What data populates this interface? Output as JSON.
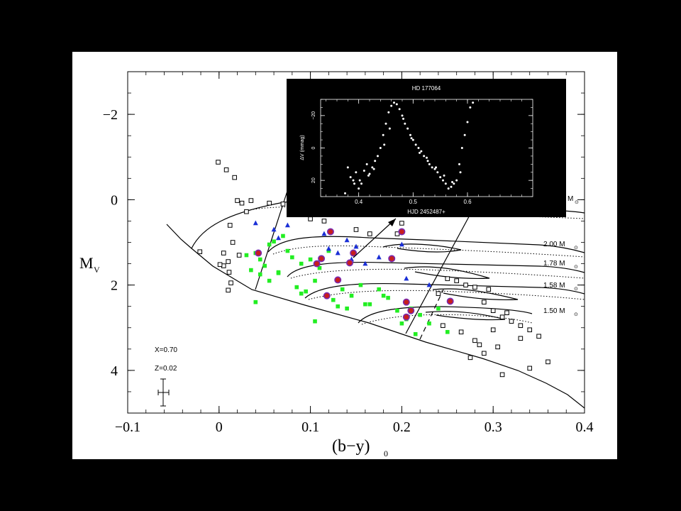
{
  "chart_data": [
    {
      "type": "scatter",
      "xlabel": "(b−y)",
      "xlabel_subscript": "0",
      "ylabel": "M",
      "ylabel_subscript": "V",
      "xlim": [
        -0.1,
        0.4
      ],
      "ylim": [
        5.0,
        -3.0
      ],
      "y_inverted": true,
      "x_ticks": [
        -0.1,
        0,
        0.1,
        0.2,
        0.3,
        0.4
      ],
      "x_tick_labels": [
        "−0.1",
        "0",
        "0.1",
        "0.2",
        "0.3",
        "0.4"
      ],
      "y_ticks": [
        -2,
        0,
        2,
        4
      ],
      "y_tick_labels": [
        "−2",
        "0",
        "2",
        "4"
      ],
      "grid": false,
      "annotations": {
        "x_abundance": "X=0.70",
        "z_abundance": "Z=0.02",
        "mass_labels": [
          "2.00 M",
          "1.78 M",
          "1.58 M",
          "1.50 M",
          "M"
        ],
        "sun_symbol": "⊙"
      },
      "colors": {
        "background": "#000000",
        "panel": "#ffffff",
        "green_squares": "#22ee22",
        "blue_triangles": "#1a2fd6",
        "red_circles": "#c81e1e",
        "red_circle_edge": "#7a2ab0"
      },
      "series": [
        {
          "marker": "open-square",
          "x": [
            -0.001,
            0.008,
            0.017,
            0.02,
            0.005,
            0.012,
            0.015,
            0.022,
            0.01,
            0.005,
            -0.021,
            0.03,
            0.035,
            0.025,
            0.013,
            0.01,
            0.001,
            0.011,
            0.055,
            0.07,
            0.09,
            0.1,
            0.115,
            0.13,
            0.15,
            0.165,
            0.2,
            0.195,
            0.24,
            0.25,
            0.26,
            0.27,
            0.28,
            0.29,
            0.295,
            0.3,
            0.31,
            0.32,
            0.33,
            0.34,
            0.35,
            0.36,
            0.245,
            0.265,
            0.28,
            0.3,
            0.31,
            0.285,
            0.29,
            0.275,
            0.305,
            0.315,
            0.33,
            0.34
          ],
          "y": [
            -0.88,
            -0.7,
            -0.52,
            0.02,
            1.25,
            0.6,
            1.0,
            1.3,
            1.45,
            1.55,
            1.22,
            0.28,
            0.02,
            0.08,
            1.95,
            2.12,
            1.52,
            1.7,
            0.08,
            0.1,
            0.3,
            0.45,
            0.5,
            0.1,
            0.7,
            0.8,
            0.55,
            0.8,
            2.2,
            1.85,
            1.9,
            2.0,
            2.05,
            2.4,
            2.1,
            2.6,
            2.75,
            2.85,
            2.95,
            3.05,
            3.2,
            3.8,
            2.95,
            3.1,
            3.3,
            3.05,
            4.1,
            3.4,
            3.6,
            3.7,
            3.45,
            2.65,
            3.25,
            3.95
          ]
        },
        {
          "marker": "green-square",
          "x": [
            0.03,
            0.035,
            0.04,
            0.045,
            0.05,
            0.055,
            0.06,
            0.065,
            0.07,
            0.075,
            0.08,
            0.09,
            0.1,
            0.11,
            0.12,
            0.04,
            0.045,
            0.055,
            0.065,
            0.085,
            0.095,
            0.105,
            0.125,
            0.135,
            0.145,
            0.155,
            0.165,
            0.175,
            0.185,
            0.195,
            0.2,
            0.205,
            0.21,
            0.215,
            0.22,
            0.23,
            0.24,
            0.25,
            0.18,
            0.16,
            0.14,
            0.13,
            0.105,
            0.09
          ],
          "y": [
            1.3,
            1.65,
            1.25,
            1.4,
            1.55,
            1.05,
            0.98,
            1.7,
            0.85,
            1.2,
            1.35,
            1.5,
            1.4,
            1.6,
            1.2,
            2.4,
            1.75,
            1.9,
            1.72,
            2.05,
            2.15,
            1.9,
            2.35,
            2.1,
            2.25,
            2.0,
            2.45,
            2.1,
            2.3,
            2.6,
            2.9,
            2.8,
            2.55,
            3.15,
            2.7,
            2.9,
            2.55,
            3.1,
            2.25,
            2.45,
            2.55,
            2.5,
            2.85,
            2.2
          ]
        },
        {
          "marker": "blue-triangle",
          "x": [
            0.04,
            0.06,
            0.065,
            0.075,
            0.115,
            0.12,
            0.13,
            0.14,
            0.145,
            0.15,
            0.16,
            0.175,
            0.2,
            0.205,
            0.23
          ],
          "y": [
            0.55,
            0.7,
            0.9,
            0.6,
            0.8,
            1.15,
            1.25,
            0.95,
            1.4,
            1.1,
            1.5,
            1.35,
            1.05,
            1.85,
            2.0
          ]
        },
        {
          "marker": "red-circle",
          "x": [
            0.043,
            0.107,
            0.112,
            0.122,
            0.13,
            0.143,
            0.147,
            0.189,
            0.2,
            0.205,
            0.21,
            0.205,
            0.253,
            0.118
          ],
          "y": [
            1.25,
            1.5,
            1.38,
            0.75,
            1.88,
            1.48,
            1.25,
            1.38,
            0.75,
            2.4,
            2.6,
            2.75,
            2.38,
            2.25
          ]
        }
      ]
    },
    {
      "type": "scatter",
      "title": "HD 177064",
      "xlabel": "HJD 2452487+",
      "ylabel": "ΔV (mmag)",
      "xlim": [
        0.33,
        0.72
      ],
      "ylim": [
        30,
        -30
      ],
      "x_ticks": [
        0.4,
        0.5,
        0.6
      ],
      "x_tick_labels": [
        "0.4",
        "0.5",
        "0.6"
      ],
      "y_ticks": [
        -20,
        0,
        20
      ],
      "y_tick_labels": [
        "−20",
        "0",
        "20"
      ],
      "series": [
        {
          "marker": "dot",
          "x": [
            0.375,
            0.38,
            0.385,
            0.39,
            0.395,
            0.4,
            0.405,
            0.41,
            0.415,
            0.42,
            0.425,
            0.43,
            0.435,
            0.44,
            0.445,
            0.45,
            0.455,
            0.46,
            0.465,
            0.47,
            0.475,
            0.48,
            0.485,
            0.49,
            0.495,
            0.5,
            0.505,
            0.51,
            0.515,
            0.52,
            0.525,
            0.53,
            0.535,
            0.54,
            0.545,
            0.55,
            0.555,
            0.56,
            0.565,
            0.57,
            0.575,
            0.58,
            0.585,
            0.59,
            0.595,
            0.6,
            0.605,
            0.61,
            0.392,
            0.402,
            0.418,
            0.428,
            0.447,
            0.457,
            0.482,
            0.497,
            0.512,
            0.527,
            0.542,
            0.557,
            0.572,
            0.587
          ],
          "y": [
            28,
            12,
            18,
            20,
            15,
            25,
            22,
            14,
            10,
            16,
            12,
            8,
            5,
            0,
            -8,
            -15,
            -22,
            -26,
            -28,
            -27,
            -24,
            -20,
            -15,
            -12,
            -8,
            -5,
            -2,
            0,
            2,
            5,
            6,
            10,
            12,
            13,
            15,
            18,
            20,
            22,
            25,
            24,
            22,
            20,
            10,
            0,
            -8,
            -16,
            -25,
            -28,
            22,
            20,
            17,
            13,
            -2,
            -12,
            -18,
            -6,
            3,
            8,
            12,
            17,
            21,
            15
          ]
        }
      ]
    }
  ]
}
